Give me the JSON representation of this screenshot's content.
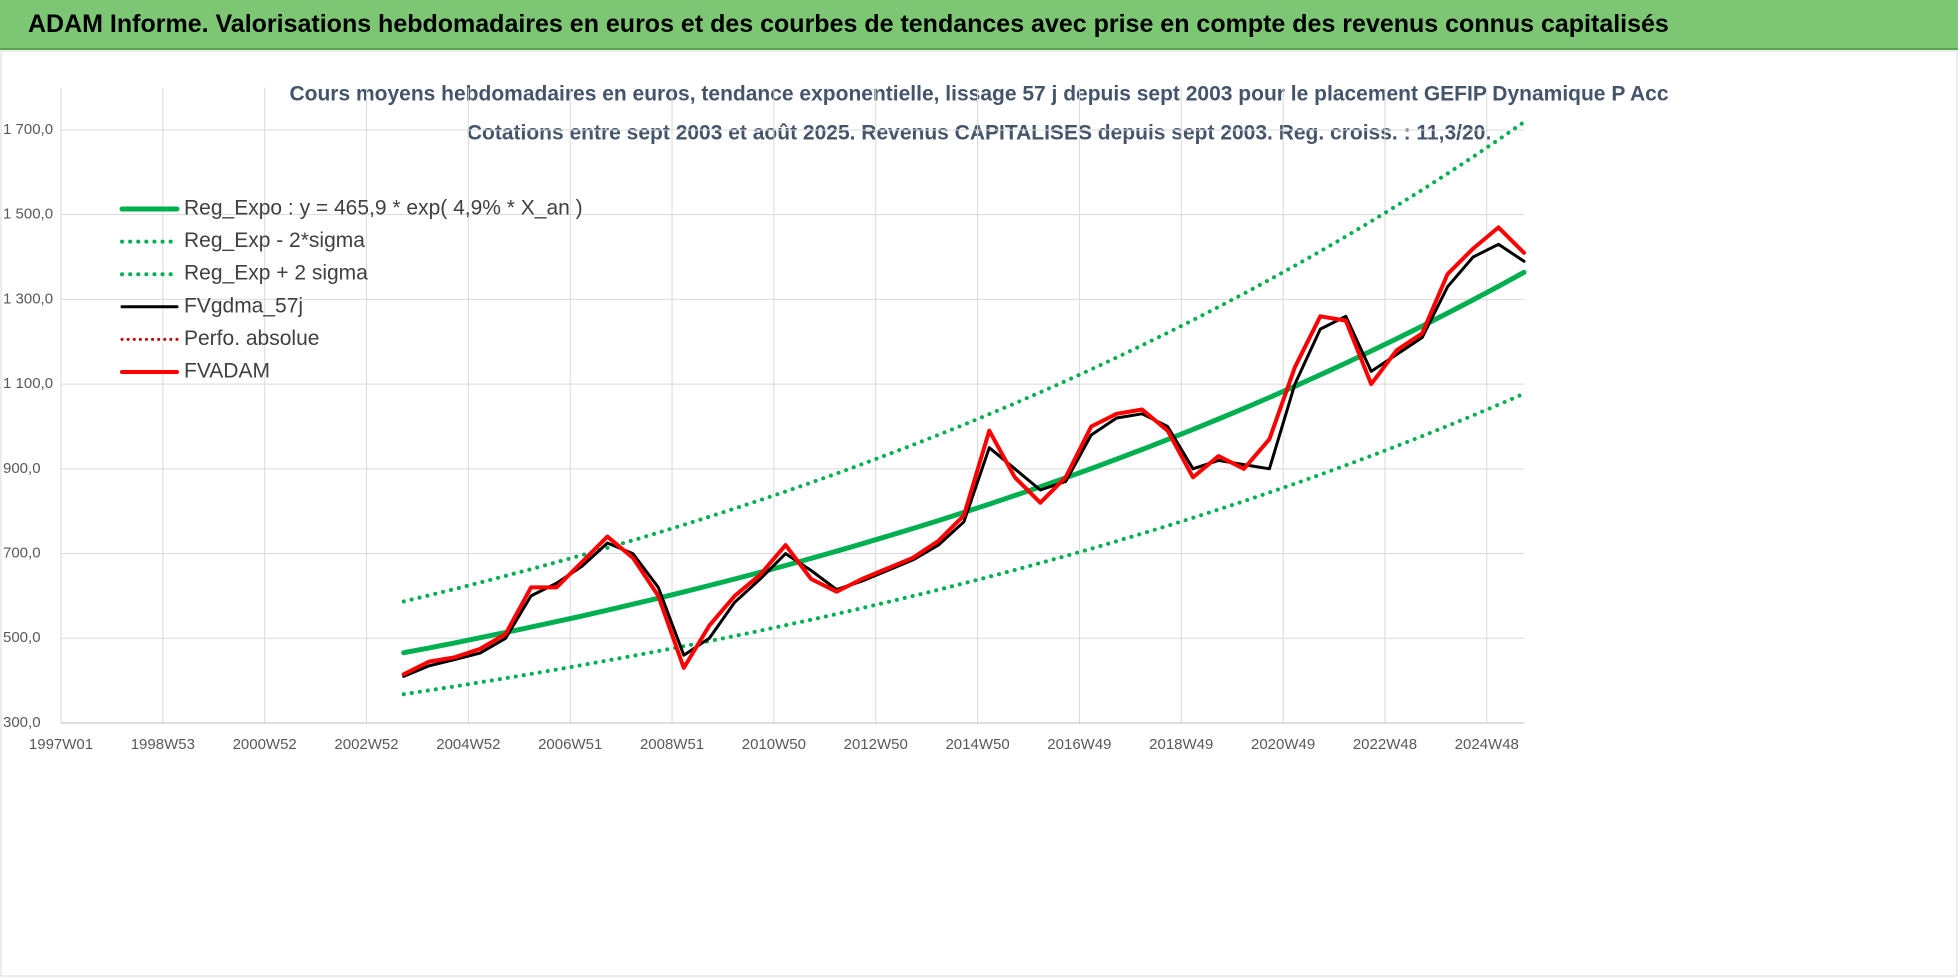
{
  "banner": {
    "title": "ADAM Informe. Valorisations hebdomadaires en euros et des courbes de tendances avec prise en compte des revenus connus capitalisés"
  },
  "chart_data": {
    "type": "line",
    "title": "Cours moyens hebdomadaires en euros, tendance exponentielle, lissage 57 j depuis sept 2003 pour le placement GEFIP Dynamique P Acc",
    "subtitle": "Cotations entre sept 2003 et août 2025. Revenus CAPITALISES depuis sept 2003. Reg. croiss. : 11,3/20.",
    "x": [
      350,
      376,
      402,
      428,
      454,
      480,
      506,
      532,
      558,
      584,
      610,
      636,
      662,
      688,
      714,
      740,
      766,
      792,
      818,
      844,
      870,
      896,
      922,
      948,
      974,
      1000,
      1026,
      1052,
      1078,
      1104,
      1130,
      1156,
      1182,
      1208,
      1234,
      1260,
      1286,
      1312,
      1338,
      1364,
      1390,
      1416,
      1442,
      1468,
      1494
    ],
    "xlim": [
      0,
      1494
    ],
    "xticks": [
      {
        "value": 0,
        "label": "1997W01"
      },
      {
        "value": 104,
        "label": "1998W53"
      },
      {
        "value": 208,
        "label": "2000W52"
      },
      {
        "value": 312,
        "label": "2002W52"
      },
      {
        "value": 416,
        "label": "2004W52"
      },
      {
        "value": 520,
        "label": "2006W51"
      },
      {
        "value": 624,
        "label": "2008W51"
      },
      {
        "value": 728,
        "label": "2010W50"
      },
      {
        "value": 832,
        "label": "2012W50"
      },
      {
        "value": 936,
        "label": "2014W50"
      },
      {
        "value": 1040,
        "label": "2016W49"
      },
      {
        "value": 1144,
        "label": "2018W49"
      },
      {
        "value": 1248,
        "label": "2020W49"
      },
      {
        "value": 1352,
        "label": "2022W48"
      },
      {
        "value": 1456,
        "label": "2024W48"
      }
    ],
    "ylim": [
      300,
      1800
    ],
    "yticks": [
      {
        "value": 300,
        "label": "300,0"
      },
      {
        "value": 500,
        "label": "500,0"
      },
      {
        "value": 700,
        "label": "700,0"
      },
      {
        "value": 900,
        "label": "900,0"
      },
      {
        "value": 1100,
        "label": "1 100,0"
      },
      {
        "value": 1300,
        "label": "1 300,0"
      },
      {
        "value": 1500,
        "label": "1 500,0"
      },
      {
        "value": 1700,
        "label": "1 700,0"
      }
    ],
    "grid": true,
    "legend": "top-left",
    "series": [
      {
        "name": "Reg_Expo : y = 465,9 * exp( 4,9% *  X_an )",
        "color": "#00b050",
        "style": "solid",
        "width": 5,
        "values": [
          465.9,
          477.4,
          489.2,
          501.3,
          513.7,
          526.4,
          539.4,
          552.7,
          566.4,
          580.4,
          594.7,
          609.4,
          624.5,
          639.9,
          655.7,
          671.9,
          688.5,
          705.5,
          723.0,
          740.9,
          759.2,
          777.9,
          797.1,
          816.8,
          837.0,
          857.7,
          878.9,
          900.6,
          922.9,
          945.7,
          969.1,
          993.0,
          1017.6,
          1042.7,
          1068.5,
          1094.9,
          1121.9,
          1149.7,
          1178.1,
          1207.2,
          1237.0,
          1267.6,
          1298.9,
          1331.0,
          1363.9
        ]
      },
      {
        "name": "Reg_Exp - 2*sigma",
        "color": "#00b050",
        "style": "dotted",
        "width": 4,
        "values": [
          368.1,
          377.1,
          386.5,
          396.0,
          405.8,
          415.9,
          426.1,
          436.6,
          447.5,
          458.5,
          469.8,
          481.4,
          493.4,
          505.5,
          518.0,
          530.8,
          543.9,
          557.3,
          571.2,
          585.3,
          599.8,
          614.5,
          629.7,
          645.3,
          661.2,
          677.6,
          694.3,
          711.5,
          729.1,
          747.1,
          765.6,
          784.5,
          803.9,
          823.7,
          844.1,
          865.0,
          886.3,
          908.3,
          930.7,
          953.7,
          977.2,
          1001.4,
          1026.1,
          1051.5,
          1077.5
        ]
      },
      {
        "name": "Reg_Exp + 2 sigma",
        "color": "#00b050",
        "style": "dotted",
        "width": 4,
        "values": [
          587.0,
          601.5,
          616.4,
          631.6,
          647.3,
          663.3,
          679.6,
          696.4,
          713.7,
          731.3,
          749.3,
          767.8,
          786.9,
          806.3,
          826.2,
          846.6,
          867.5,
          888.9,
          911.0,
          933.5,
          956.6,
          980.2,
          1004.3,
          1029.2,
          1054.6,
          1080.7,
          1107.4,
          1134.8,
          1162.9,
          1191.6,
          1221.1,
          1251.2,
          1282.2,
          1313.8,
          1346.3,
          1379.6,
          1413.6,
          1448.6,
          1484.4,
          1521.1,
          1558.6,
          1597.2,
          1636.6,
          1677.1,
          1718.5
        ]
      },
      {
        "name": "FVgdma_57j",
        "color": "#000000",
        "style": "solid",
        "width": 3,
        "values": [
          410,
          435,
          450,
          465,
          500,
          600,
          630,
          670,
          725,
          700,
          620,
          460,
          500,
          585,
          640,
          700,
          660,
          615,
          635,
          660,
          685,
          720,
          775,
          950,
          900,
          850,
          870,
          980,
          1020,
          1030,
          1000,
          900,
          920,
          910,
          900,
          1100,
          1230,
          1260,
          1130,
          1170,
          1210,
          1330,
          1400,
          1430,
          1390
        ]
      },
      {
        "name": "Perfo. absolue",
        "color": "#c00000",
        "style": "dotted",
        "width": 3,
        "values": [
          415,
          445,
          455,
          475,
          510,
          620,
          620,
          680,
          740,
          690,
          600,
          430,
          530,
          600,
          650,
          720,
          640,
          610,
          640,
          665,
          690,
          730,
          790,
          990,
          880,
          820,
          880,
          1000,
          1030,
          1040,
          990,
          880,
          930,
          900,
          970,
          1140,
          1260,
          1250,
          1100,
          1180,
          1220,
          1360,
          1420,
          1470,
          1410
        ]
      },
      {
        "name": "FVADAM",
        "color": "#ff0000",
        "style": "solid",
        "width": 4,
        "values": [
          415,
          445,
          455,
          475,
          510,
          620,
          620,
          680,
          740,
          690,
          600,
          430,
          530,
          600,
          650,
          720,
          640,
          610,
          640,
          665,
          690,
          730,
          790,
          990,
          880,
          820,
          880,
          1000,
          1030,
          1040,
          990,
          880,
          930,
          900,
          970,
          1140,
          1260,
          1250,
          1100,
          1180,
          1220,
          1360,
          1420,
          1470,
          1410
        ]
      }
    ]
  }
}
